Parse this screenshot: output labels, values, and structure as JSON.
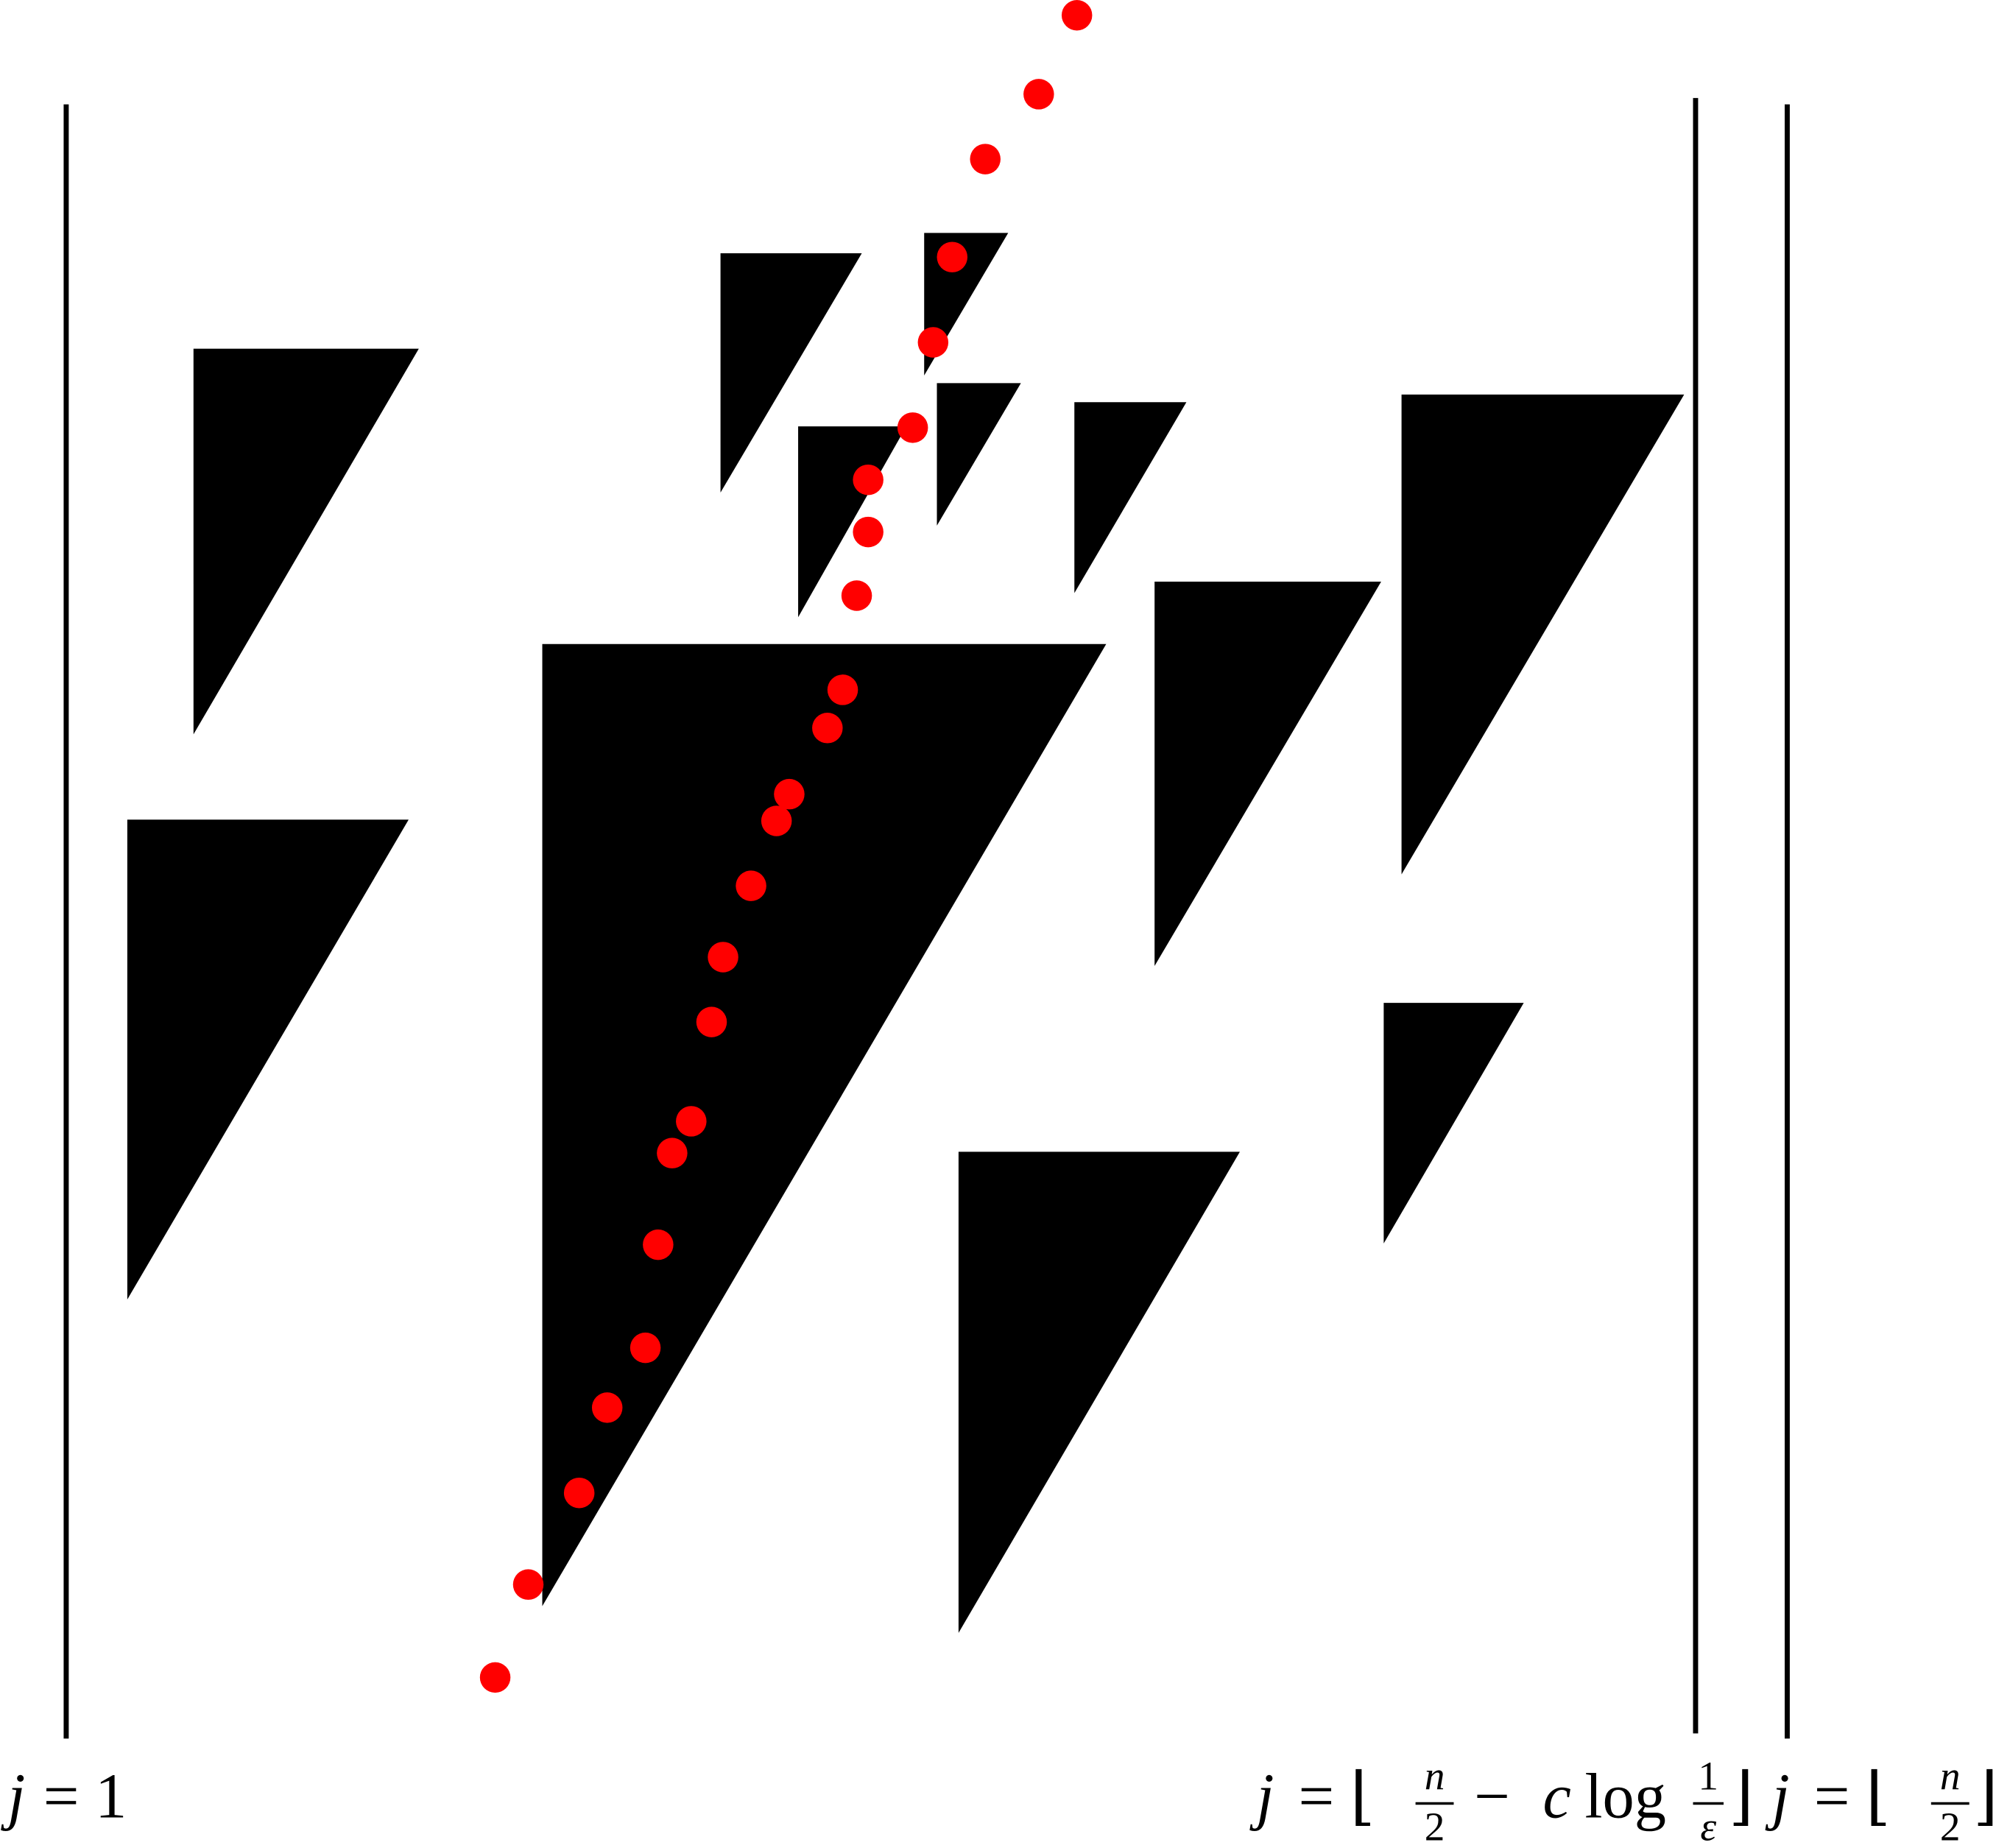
{
  "labels": [
    {
      "var": "j",
      "rel": "= 1"
    },
    {
      "var": "j",
      "rel": "= ⌊",
      "frac1": {
        "num": "n",
        "den": "2"
      },
      "minus": "−",
      "c": "c",
      "log": "log",
      "frac2": {
        "num": "1",
        "den": "ε"
      },
      "close": "⌋"
    },
    {
      "var": "j",
      "rel": "= ⌊",
      "frac1": {
        "num": "n",
        "den": "2"
      },
      "close": "⌋"
    }
  ]
}
